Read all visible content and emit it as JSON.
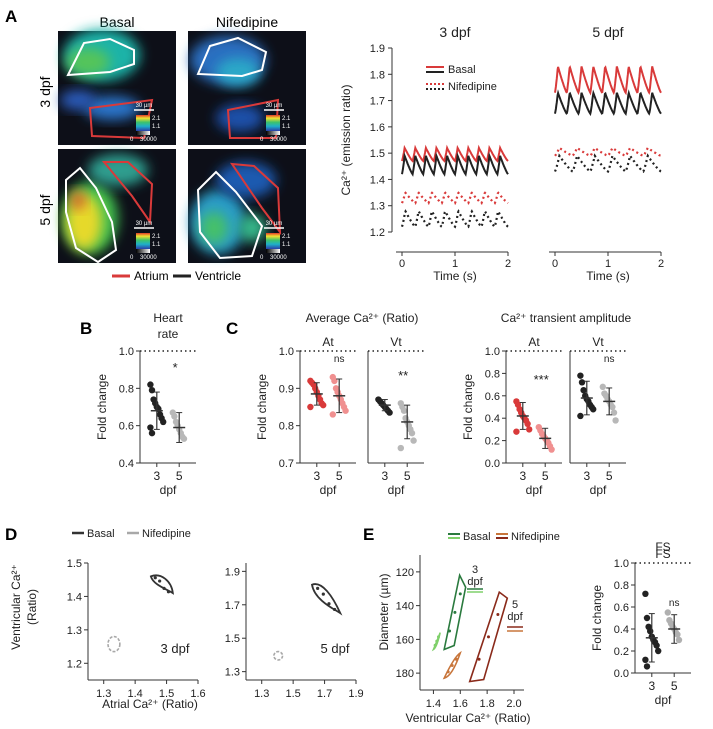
{
  "panel_letters": [
    "A",
    "B",
    "C",
    "D",
    "E"
  ],
  "micro": {
    "col_labels": [
      "Basal",
      "Nifedipine"
    ],
    "row_labels": [
      "3 dpf",
      "5 dpf"
    ],
    "scale_bar": "30 µm",
    "cbar_ratio_top": "2.1",
    "cbar_ratio_bottom": "1.1",
    "cbar_count_low": "0",
    "cbar_count_high": "30000",
    "legend": [
      "Atrium",
      "Ventricle"
    ],
    "legend_colors": [
      "#d93a3a",
      "#222222"
    ]
  },
  "trace": {
    "ylabel": "Ca²⁺ (emission ratio)",
    "xlabel": "Time (s)",
    "legend": [
      "Basal",
      "Nifedipine"
    ],
    "basal_color": "#d93a3a",
    "dark_color": "#222222"
  },
  "bar": {
    "ylabel": "Fold change",
    "xlabel": "dpf",
    "colors": {
      "three": "#222222",
      "five": "#b8b8b8",
      "red3": "#d93a3a",
      "red5": "#f09090"
    },
    "ns": "ns"
  },
  "loops": {
    "legend": [
      "Basal",
      "Nifedipine"
    ],
    "ylabel_line1": "Ventricular Ca²⁺",
    "ylabel_line2": "(Ratio)",
    "xlabel": "Atrial Ca²⁺ (Ratio)",
    "tags": [
      "3 dpf",
      "5 dpf"
    ]
  },
  "diam": {
    "legend": [
      "Basal",
      "Nifedipine"
    ],
    "legend_colors": [
      "#2a7a3e",
      "#c8753a"
    ],
    "ylabel": "Diameter (µm)",
    "xlabel": "Ventricular Ca²⁺ (Ratio)",
    "tag3": [
      "3",
      "dpf"
    ],
    "tag5": [
      "5",
      "dpf"
    ],
    "fs_title": "FS"
  },
  "chart_data": [
    {
      "id": "A-3dpf",
      "type": "line",
      "title": "3 dpf",
      "xlabel": "Time (s)",
      "ylabel": "Ca²⁺ (emission ratio)",
      "xlim": [
        0,
        2
      ],
      "ylim": [
        1.2,
        1.9
      ],
      "xticks": [
        0,
        1,
        2
      ],
      "yticks": [
        1.2,
        1.3,
        1.4,
        1.5,
        1.6,
        1.7,
        1.8,
        1.9
      ],
      "series": [
        {
          "name": "Basal",
          "region": "Atrium",
          "style": "solid",
          "min": 1.47,
          "max": 1.52,
          "cycles": 10
        },
        {
          "name": "Basal",
          "region": "Ventricle",
          "style": "solid",
          "min": 1.42,
          "max": 1.49,
          "cycles": 10
        },
        {
          "name": "Nifedipine",
          "region": "Atrium",
          "style": "dotted",
          "min": 1.31,
          "max": 1.35,
          "cycles": 8
        },
        {
          "name": "Nifedipine",
          "region": "Ventricle",
          "style": "dotted",
          "min": 1.22,
          "max": 1.28,
          "cycles": 8
        }
      ]
    },
    {
      "id": "A-5dpf",
      "type": "line",
      "title": "5 dpf",
      "xlabel": "Time (s)",
      "xlim": [
        0,
        2
      ],
      "ylim": [
        1.2,
        1.9
      ],
      "xticks": [
        0,
        1,
        2
      ],
      "series": [
        {
          "name": "Basal",
          "region": "Atrium",
          "style": "solid",
          "min": 1.73,
          "max": 1.83,
          "cycles": 9
        },
        {
          "name": "Basal",
          "region": "Ventricle",
          "style": "solid",
          "min": 1.65,
          "max": 1.73,
          "cycles": 9
        },
        {
          "name": "Nifedipine",
          "region": "Atrium",
          "style": "dotted",
          "min": 1.49,
          "max": 1.52,
          "cycles": 6
        },
        {
          "name": "Nifedipine",
          "region": "Ventricle",
          "style": "dotted",
          "min": 1.43,
          "max": 1.49,
          "cycles": 6
        }
      ]
    },
    {
      "id": "B",
      "type": "scatter",
      "title_lines": [
        "Heart",
        "rate"
      ],
      "ylabel": "Fold change",
      "xlabel": "dpf",
      "ylim": [
        0.4,
        1.0
      ],
      "yticks": [
        0.4,
        0.6,
        0.8,
        1.0
      ],
      "reference_line": 1.0,
      "groups": [
        {
          "label": "3",
          "mean": 0.68,
          "sd": 0.1,
          "points": [
            0.82,
            0.79,
            0.74,
            0.72,
            0.7,
            0.69,
            0.66,
            0.64,
            0.62,
            0.59,
            0.56
          ]
        },
        {
          "label": "5",
          "mean": 0.59,
          "sd": 0.08,
          "points": [
            0.67,
            0.65,
            0.62,
            0.6,
            0.58,
            0.56,
            0.54,
            0.53
          ]
        }
      ],
      "significance": "*"
    },
    {
      "id": "C-avg-At",
      "type": "scatter",
      "group_title": "Average Ca²⁺ (Ratio)",
      "title": "At",
      "ylabel": "Fold change",
      "xlabel": "dpf",
      "ylim": [
        0.7,
        1.0
      ],
      "yticks": [
        0.7,
        0.8,
        0.9,
        1.0
      ],
      "reference_line": 1.0,
      "groups": [
        {
          "label": "3",
          "mean": 0.885,
          "sd": 0.03,
          "points": [
            0.92,
            0.915,
            0.91,
            0.9,
            0.89,
            0.88,
            0.87,
            0.86,
            0.855,
            0.85
          ]
        },
        {
          "label": "5",
          "mean": 0.88,
          "sd": 0.045,
          "points": [
            0.93,
            0.92,
            0.9,
            0.89,
            0.88,
            0.87,
            0.86,
            0.85,
            0.84,
            0.83
          ]
        }
      ],
      "significance": "ns"
    },
    {
      "id": "C-avg-Vt",
      "type": "scatter",
      "title": "Vt",
      "xlabel": "dpf",
      "ylim": [
        0.7,
        1.0
      ],
      "reference_line": 1.0,
      "groups": [
        {
          "label": "3",
          "mean": 0.855,
          "sd": 0.015,
          "points": [
            0.87,
            0.865,
            0.86,
            0.855,
            0.85,
            0.845,
            0.84,
            0.835
          ]
        },
        {
          "label": "5",
          "mean": 0.81,
          "sd": 0.045,
          "points": [
            0.86,
            0.85,
            0.84,
            0.82,
            0.81,
            0.8,
            0.79,
            0.78,
            0.76,
            0.74
          ]
        }
      ],
      "significance": "**"
    },
    {
      "id": "C-amp-At",
      "type": "scatter",
      "group_title": "Ca²⁺ transient amplitude",
      "title": "At",
      "ylabel": "Fold change",
      "xlabel": "dpf",
      "ylim": [
        0.0,
        1.0
      ],
      "yticks": [
        0.0,
        0.2,
        0.4,
        0.6,
        0.8,
        1.0
      ],
      "reference_line": 1.0,
      "groups": [
        {
          "label": "3",
          "mean": 0.42,
          "sd": 0.12,
          "points": [
            0.55,
            0.52,
            0.48,
            0.45,
            0.42,
            0.4,
            0.38,
            0.35,
            0.3,
            0.28
          ]
        },
        {
          "label": "5",
          "mean": 0.22,
          "sd": 0.09,
          "points": [
            0.32,
            0.29,
            0.26,
            0.24,
            0.22,
            0.2,
            0.18,
            0.15,
            0.12
          ]
        }
      ],
      "significance": "***"
    },
    {
      "id": "C-amp-Vt",
      "type": "scatter",
      "title": "Vt",
      "xlabel": "dpf",
      "ylim": [
        0.0,
        1.0
      ],
      "reference_line": 1.0,
      "groups": [
        {
          "label": "3",
          "mean": 0.58,
          "sd": 0.15,
          "points": [
            0.78,
            0.72,
            0.65,
            0.6,
            0.57,
            0.55,
            0.52,
            0.5,
            0.48,
            0.42
          ]
        },
        {
          "label": "5",
          "mean": 0.55,
          "sd": 0.12,
          "points": [
            0.68,
            0.62,
            0.6,
            0.57,
            0.55,
            0.52,
            0.5,
            0.45,
            0.38
          ]
        }
      ],
      "significance": "ns"
    },
    {
      "id": "D-3dpf",
      "type": "line",
      "xlabel": "Atrial Ca²⁺ (Ratio)",
      "ylabel": "Ventricular Ca²⁺ (Ratio)",
      "xlim": [
        1.25,
        1.6
      ],
      "ylim": [
        1.15,
        1.5
      ],
      "xticks": [
        1.3,
        1.4,
        1.5,
        1.6
      ],
      "yticks": [
        1.2,
        1.3,
        1.4,
        1.5
      ],
      "series": [
        {
          "name": "Basal",
          "loop_x": [
            1.45,
            1.49,
            1.52
          ],
          "loop_y": [
            1.46,
            1.44,
            1.41
          ]
        },
        {
          "name": "Nifedipine",
          "loop_x": [
            1.32,
            1.345
          ],
          "loop_y": [
            1.235,
            1.28
          ]
        }
      ],
      "annotation": "3 dpf"
    },
    {
      "id": "D-5dpf",
      "type": "line",
      "xlabel": "Atrial Ca²⁺ (Ratio)",
      "xlim": [
        1.2,
        1.9
      ],
      "ylim": [
        1.25,
        1.95
      ],
      "xticks": [
        1.3,
        1.5,
        1.7,
        1.9
      ],
      "yticks": [
        1.3,
        1.5,
        1.7,
        1.9
      ],
      "series": [
        {
          "name": "Basal",
          "loop_x": [
            1.62,
            1.7,
            1.8
          ],
          "loop_y": [
            1.82,
            1.74,
            1.65
          ]
        },
        {
          "name": "Nifedipine",
          "loop_x": [
            1.39,
            1.42
          ],
          "loop_y": [
            1.37,
            1.42
          ]
        }
      ],
      "annotation": "5 dpf"
    },
    {
      "id": "E-loops",
      "type": "line",
      "xlabel": "Ventricular Ca²⁺ (Ratio)",
      "ylabel": "Diameter (µm)",
      "xlim": [
        1.3,
        2.0
      ],
      "ylim": [
        190,
        110
      ],
      "y_inverted": true,
      "xticks": [
        1.4,
        1.6,
        1.8,
        2.0
      ],
      "yticks": [
        120,
        140,
        160,
        180
      ],
      "series": [
        {
          "name": "Basal 3 dpf",
          "range_x": [
            1.48,
            1.64
          ],
          "range_y": [
            122,
            166
          ]
        },
        {
          "name": "Nifedipine 3 dpf",
          "range_x": [
            1.4,
            1.45
          ],
          "range_y": [
            156,
            166
          ]
        },
        {
          "name": "Basal 5 dpf",
          "range_x": [
            1.67,
            1.95
          ],
          "range_y": [
            132,
            185
          ]
        },
        {
          "name": "Nifedipine 5 dpf",
          "range_x": [
            1.48,
            1.6
          ],
          "range_y": [
            168,
            183
          ]
        }
      ]
    },
    {
      "id": "E-FS",
      "type": "scatter",
      "title": "FS",
      "ylabel": "Fold change",
      "xlabel": "dpf",
      "ylim": [
        0.0,
        1.0
      ],
      "yticks": [
        0.0,
        0.2,
        0.4,
        0.6,
        0.8,
        1.0
      ],
      "reference_line": 1.0,
      "groups": [
        {
          "label": "3",
          "mean": 0.32,
          "sd": 0.22,
          "points": [
            0.72,
            0.5,
            0.42,
            0.38,
            0.33,
            0.3,
            0.28,
            0.25,
            0.2,
            0.12,
            0.06
          ]
        },
        {
          "label": "5",
          "mean": 0.4,
          "sd": 0.13,
          "points": [
            0.55,
            0.48,
            0.45,
            0.42,
            0.4,
            0.37,
            0.35,
            0.3
          ]
        }
      ],
      "significance": "ns"
    }
  ]
}
